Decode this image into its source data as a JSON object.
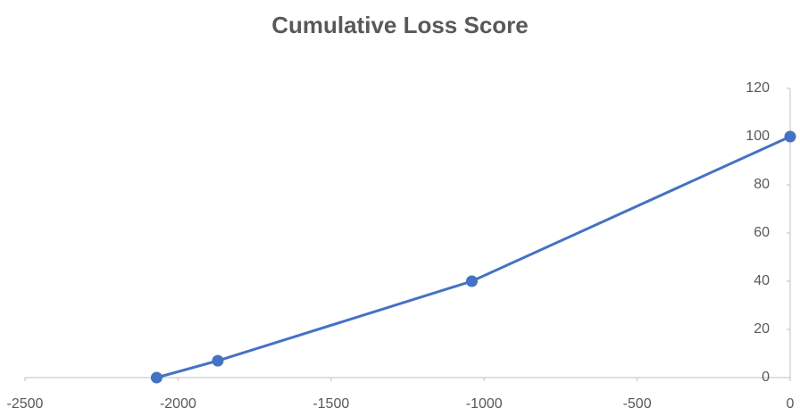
{
  "chart_data": {
    "type": "line",
    "title": "Cumulative Loss Score",
    "x": [
      -2070,
      -1870,
      -1040,
      0
    ],
    "series": [
      {
        "color": "#4472c4",
        "values": [
          0,
          7,
          40,
          100
        ]
      }
    ],
    "xlim": [
      -2500,
      0
    ],
    "xticks": [
      -2500,
      -2000,
      -1500,
      -1000,
      -500,
      0
    ],
    "ylim": [
      0,
      120
    ],
    "yticks": [
      0,
      20,
      40,
      60,
      80,
      100,
      120
    ],
    "grid": false
  }
}
